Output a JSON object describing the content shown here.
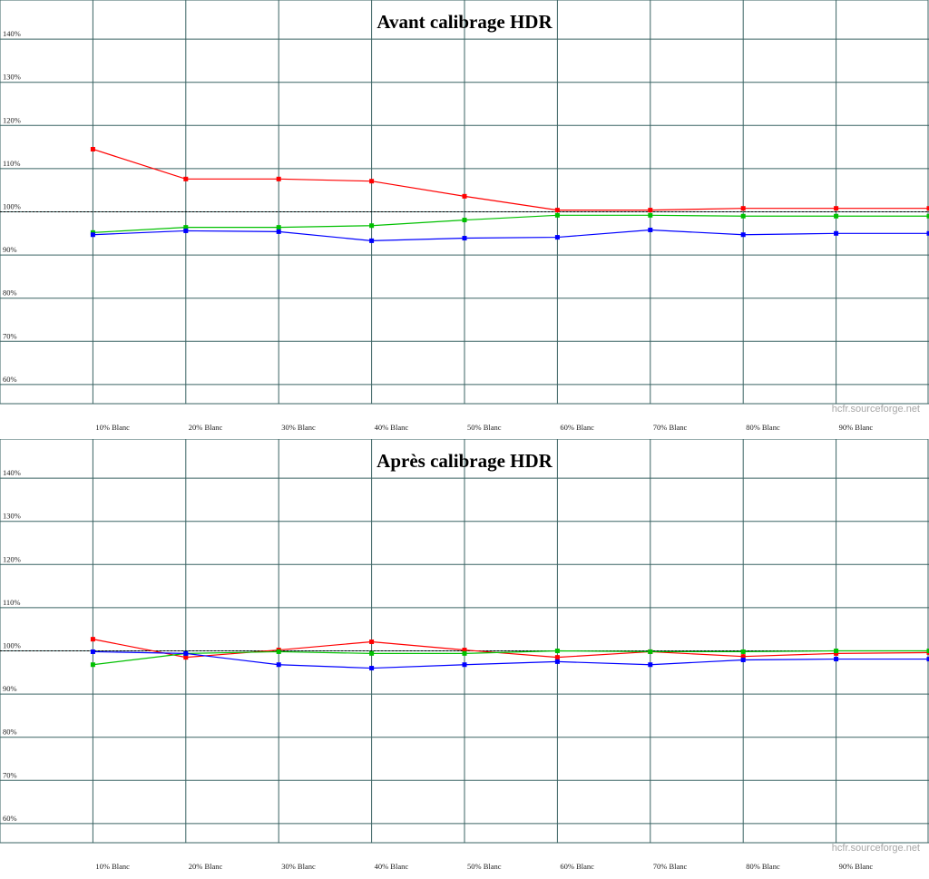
{
  "style": {
    "grid_color": "#3a6363",
    "reference_line_color": "#000000",
    "tick_text_color": "#1c1c1c",
    "watermark_color": "#a6a6a6",
    "background": "#ffffff"
  },
  "chart_data": [
    {
      "type": "line",
      "title": "Avant calibrage HDR",
      "watermark": "hcfr.sourceforge.net",
      "xlabel": "",
      "ylabel": "",
      "x": [
        10,
        20,
        30,
        40,
        50,
        60,
        70,
        80,
        90,
        100
      ],
      "x_tick_labels": [
        "10% Blanc",
        "20% Blanc",
        "30% Blanc",
        "40% Blanc",
        "50% Blanc",
        "60% Blanc",
        "70% Blanc",
        "80% Blanc",
        "90% Blanc"
      ],
      "y_tick_labels": [
        "140%",
        "130%",
        "120%",
        "110%",
        "100%",
        "90%",
        "80%",
        "70%",
        "60%"
      ],
      "y_ticks": [
        140,
        130,
        120,
        110,
        100,
        90,
        80,
        70,
        60
      ],
      "ylim": [
        55.5,
        149
      ],
      "reference_line": 100,
      "grid": true,
      "legend_position": "none",
      "series": [
        {
          "name": "Rouge",
          "color": "#ff0000",
          "values": [
            114.5,
            107.6,
            107.6,
            107.1,
            103.6,
            100.4,
            100.4,
            100.8,
            100.8,
            100.8
          ]
        },
        {
          "name": "Vert",
          "color": "#00c000",
          "values": [
            95.2,
            96.4,
            96.4,
            96.8,
            98.1,
            99.2,
            99.2,
            99.0,
            99.0,
            99.0
          ]
        },
        {
          "name": "Bleu",
          "color": "#0000ff",
          "values": [
            94.7,
            95.6,
            95.4,
            93.3,
            93.9,
            94.1,
            95.8,
            94.7,
            95.0,
            95.0
          ]
        }
      ]
    },
    {
      "type": "line",
      "title": "Après calibrage HDR",
      "watermark": "hcfr.sourceforge.net",
      "xlabel": "",
      "ylabel": "",
      "x": [
        10,
        20,
        30,
        40,
        50,
        60,
        70,
        80,
        90,
        100
      ],
      "x_tick_labels": [
        "10% Blanc",
        "20% Blanc",
        "30% Blanc",
        "40% Blanc",
        "50% Blanc",
        "60% Blanc",
        "70% Blanc",
        "80% Blanc",
        "90% Blanc"
      ],
      "y_tick_labels": [
        "140%",
        "130%",
        "120%",
        "110%",
        "100%",
        "90%",
        "80%",
        "70%",
        "60%"
      ],
      "y_ticks": [
        140,
        130,
        120,
        110,
        100,
        90,
        80,
        70,
        60
      ],
      "ylim": [
        55.5,
        149
      ],
      "reference_line": 100,
      "grid": true,
      "legend_position": "none",
      "series": [
        {
          "name": "Rouge",
          "color": "#ff0000",
          "values": [
            102.7,
            98.5,
            100.2,
            102.1,
            100.2,
            98.5,
            99.8,
            98.7,
            99.4,
            99.6
          ]
        },
        {
          "name": "Vert",
          "color": "#00c000",
          "values": [
            96.8,
            99.4,
            99.8,
            99.4,
            99.4,
            100.0,
            99.8,
            99.8,
            100.0,
            100.0
          ]
        },
        {
          "name": "Bleu",
          "color": "#0000ff",
          "values": [
            99.8,
            99.4,
            96.8,
            96.0,
            96.8,
            97.5,
            96.8,
            97.9,
            98.1,
            98.1
          ]
        }
      ]
    }
  ]
}
